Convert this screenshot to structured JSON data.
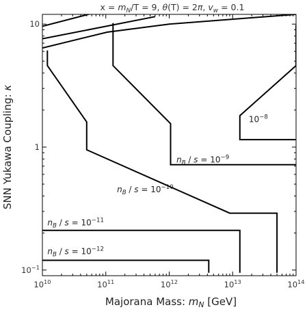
{
  "chart_data": {
    "type": "contour",
    "title": {
      "parts": [
        {
          "t": "x = "
        },
        {
          "t": "m",
          "i": 1
        },
        {
          "t": "N",
          "sub": 1,
          "i": 1
        },
        {
          "t": "/T = 9,  "
        },
        {
          "t": "θ",
          "i": 1
        },
        {
          "t": "(T) = 2"
        },
        {
          "t": "π",
          "i": 1
        },
        {
          "t": ",  "
        },
        {
          "t": "v",
          "i": 1
        },
        {
          "t": "w",
          "sub": 1,
          "i": 1
        },
        {
          "t": " = 0.1"
        }
      ]
    },
    "xlabel": {
      "parts": [
        {
          "t": "Majorana Mass:  "
        },
        {
          "t": "m",
          "i": 1
        },
        {
          "t": "N",
          "sub": 1,
          "i": 1
        },
        {
          "t": " [GeV]"
        }
      ]
    },
    "ylabel": {
      "parts": [
        {
          "t": "SNN Yukawa Coupling:  "
        },
        {
          "t": "κ",
          "i": 1
        }
      ]
    },
    "x_scale": "log",
    "y_scale": "log",
    "xlim": [
      10000000000.0,
      100000000000000.0
    ],
    "ylim": [
      0.09,
      12
    ],
    "x_ticks": [
      {
        "v": 10000000000.0,
        "base": "10",
        "exp": "10"
      },
      {
        "v": 100000000000.0,
        "base": "10",
        "exp": "11"
      },
      {
        "v": 1000000000000.0,
        "base": "10",
        "exp": "12"
      },
      {
        "v": 10000000000000.0,
        "base": "10",
        "exp": "13"
      },
      {
        "v": 100000000000000.0,
        "base": "10",
        "exp": "14"
      }
    ],
    "y_ticks": [
      {
        "v": 0.1,
        "base": "10",
        "exp": "−1"
      },
      {
        "v": 1,
        "base": "1",
        "exp": ""
      },
      {
        "v": 10,
        "base": "10",
        "exp": ""
      }
    ],
    "grid": false,
    "contours": [
      {
        "label": {
          "prefix": [
            {
              "t": "n",
              "i": 1
            },
            {
              "t": "B",
              "sub": 1,
              "i": 1
            },
            {
              "t": " / "
            },
            {
              "t": "s",
              "i": 1
            },
            {
              "t": " = "
            }
          ],
          "base": "10",
          "exp": "−12"
        },
        "label_pos": [
          12000000000.0,
          0.135
        ],
        "points": [
          [
            10000000000.0,
            0.12
          ],
          [
            4200000000000.0,
            0.12
          ],
          [
            4200000000000.0,
            0.095
          ]
        ]
      },
      {
        "label": {
          "prefix": [
            {
              "t": "n",
              "i": 1
            },
            {
              "t": "B",
              "sub": 1,
              "i": 1
            },
            {
              "t": " / "
            },
            {
              "t": "s",
              "i": 1
            },
            {
              "t": " = "
            }
          ],
          "base": "10",
          "exp": "−11"
        },
        "label_pos": [
          12000000000.0,
          0.23
        ],
        "points": [
          [
            10000000000.0,
            0.21
          ],
          [
            13000000000000.0,
            0.21
          ],
          [
            13000000000000.0,
            0.095
          ]
        ]
      },
      {
        "label": {
          "prefix": [
            {
              "t": "n",
              "i": 1
            },
            {
              "t": "B",
              "sub": 1,
              "i": 1
            },
            {
              "t": " / "
            },
            {
              "t": "s",
              "i": 1
            },
            {
              "t": " = "
            }
          ],
          "base": "10",
          "exp": "−10"
        },
        "label_pos": [
          150000000000.0,
          0.43
        ],
        "points": [
          [
            12000000000.0,
            6.1
          ],
          [
            12000000000.0,
            4.6
          ],
          [
            50000000000.0,
            1.6
          ],
          [
            50000000000.0,
            0.95
          ],
          [
            9000000000000.0,
            0.29
          ],
          [
            50000000000000.0,
            0.29
          ],
          [
            50000000000000.0,
            0.095
          ]
        ]
      },
      {
        "label": {
          "prefix": [
            {
              "t": "n",
              "i": 1
            },
            {
              "t": "B",
              "sub": 1,
              "i": 1
            },
            {
              "t": " / "
            },
            {
              "t": "s",
              "i": 1
            },
            {
              "t": " = "
            }
          ],
          "base": "10",
          "exp": "−9"
        },
        "label_pos": [
          1300000000000.0,
          0.75
        ],
        "points": [
          [
            130000000000.0,
            10.2
          ],
          [
            130000000000.0,
            4.6
          ],
          [
            1050000000000.0,
            1.55
          ],
          [
            1050000000000.0,
            0.72
          ],
          [
            100000000000000.0,
            0.72
          ]
        ]
      },
      {
        "label": {
          "prefix": [],
          "base": "10",
          "exp": "−8"
        },
        "label_pos": [
          18000000000000.0,
          1.6
        ],
        "points": [
          [
            100000000000000.0,
            9.8
          ],
          [
            100000000000000.0,
            4.6
          ],
          [
            13000000000000.0,
            1.8
          ],
          [
            13000000000000.0,
            1.15
          ],
          [
            100000000000000.0,
            1.15
          ]
        ]
      },
      {
        "label": null,
        "points": [
          [
            10000000000.0,
            6.4
          ],
          [
            105000000000.0,
            8.6
          ],
          [
            1000000000000.0,
            10
          ],
          [
            100000000000000.0,
            12
          ]
        ]
      },
      {
        "label": null,
        "points": [
          [
            10000000000.0,
            7.6
          ],
          [
            600000000000.0,
            11.5
          ]
        ]
      },
      {
        "label": null,
        "points": [
          [
            10000000000.0,
            9.6
          ],
          [
            60000000000.0,
            12.2
          ]
        ]
      }
    ]
  }
}
